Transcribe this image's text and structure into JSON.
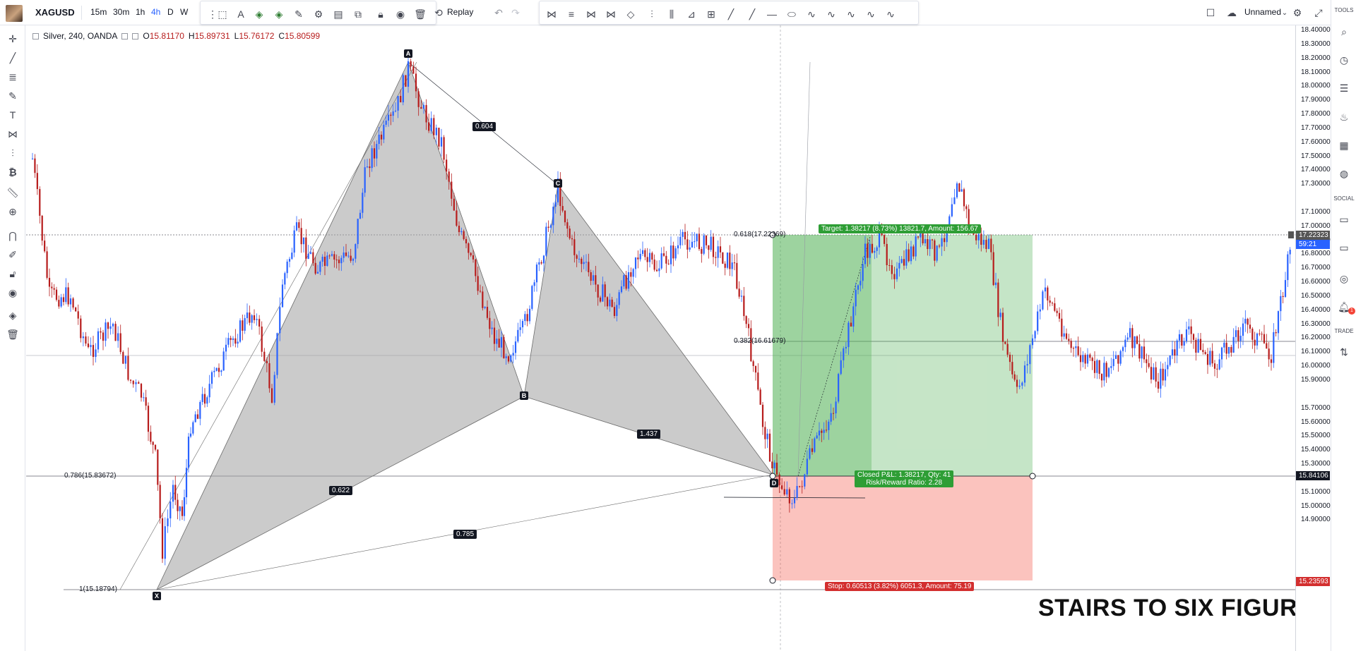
{
  "topbar": {
    "symbol": "XAGUSD",
    "timeframes": [
      "15m",
      "30m",
      "1h",
      "4h",
      "D",
      "W"
    ],
    "active_timeframe": "4h",
    "replay_label": "Replay",
    "layout_name": "Unnamed"
  },
  "legend": {
    "title": "Silver, 240, OANDA",
    "open_label": "O",
    "open": "15.81170",
    "high_label": "H",
    "high": "15.89731",
    "low_label": "L",
    "low": "15.76172",
    "close_label": "C",
    "close": "15.80599"
  },
  "pattern": {
    "points": [
      "X",
      "A",
      "B",
      "C",
      "D"
    ],
    "ratios": {
      "xab": "0.622",
      "abc": "0.604",
      "bcd": "1.437",
      "xad": "0.785"
    }
  },
  "fib": {
    "f0618": "0.618(17.22369)",
    "f0382": "0.382(16.61679)",
    "f0786": "0.786(15.83672)",
    "f1": "1(15.18794)"
  },
  "position": {
    "target": "Target: 1.38217 (8.73%) 13821.7, Amount: 156.67",
    "closed_line1": "Closed P&L: 1.38217, Qty: 41",
    "closed_line2": "Risk/Reward Ratio: 2.28",
    "stop": "Stop: 0.60513 (3.82%) 6051.3, Amount: 75.19"
  },
  "price_axis": {
    "ticks": [
      "18.40000",
      "18.30000",
      "18.20000",
      "18.10000",
      "18.00000",
      "17.90000",
      "17.80000",
      "17.70000",
      "17.60000",
      "17.50000",
      "17.40000",
      "17.30000",
      "17.10000",
      "17.00000",
      "16.90000",
      "16.80000",
      "16.70000",
      "16.60000",
      "16.50000",
      "16.40000",
      "16.30000",
      "16.20000",
      "16.10000",
      "16.00000",
      "15.90000",
      "15.70000",
      "15.60000",
      "15.50000",
      "15.40000",
      "15.30000",
      "15.10000",
      "15.00000",
      "14.90000"
    ],
    "badge_target": "17.22323",
    "badge_countdown": "59:21",
    "badge_entry": "15.84106",
    "badge_stop": "15.23593"
  },
  "right_panel": {
    "tools_label": "TOOLS",
    "social_label": "SOCIAL",
    "trade_label": "TRADE",
    "notification_count": "1"
  },
  "watermark": "STAIRS TO SIX FIGURES",
  "colors": {
    "up": "#2962ff",
    "down": "#b71c1c",
    "target": "#4caf50",
    "stop": "#f44336"
  }
}
